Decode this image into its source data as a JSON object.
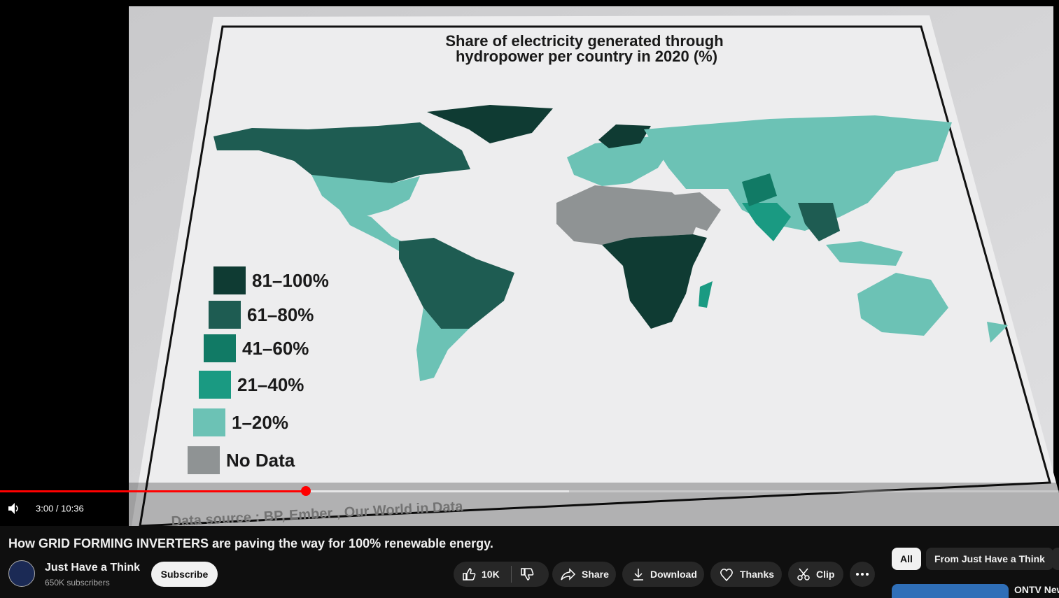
{
  "video": {
    "map_title_lines": [
      "Share of electricity generated through",
      "hydropower per country in 2020 (%)"
    ],
    "legend": [
      {
        "label": "81–100%",
        "color": "#0f3b33"
      },
      {
        "label": "61–80%",
        "color": "#1e5c52"
      },
      {
        "label": "41–60%",
        "color": "#117a65"
      },
      {
        "label": "21–40%",
        "color": "#1a9a82"
      },
      {
        "label": "1–20%",
        "color": "#6cc2b5"
      },
      {
        "label": "No Data",
        "color": "#8f9394"
      }
    ],
    "source": "Data source : BP, Ember , Our World in Data",
    "time": "3:00 / 10:36"
  },
  "title": "How GRID FORMING INVERTERS are paving the way for 100% renewable energy.",
  "channel": {
    "name": "Just Have a Think",
    "subscribers": "650K subscribers",
    "subscribe": "Subscribe"
  },
  "actions": {
    "likes": "10K",
    "share": "Share",
    "download": "Download",
    "thanks": "Thanks",
    "clip": "Clip"
  },
  "chips": [
    "All",
    "From Just Have a Think"
  ],
  "recommendation": {
    "title": "ONTV New"
  }
}
